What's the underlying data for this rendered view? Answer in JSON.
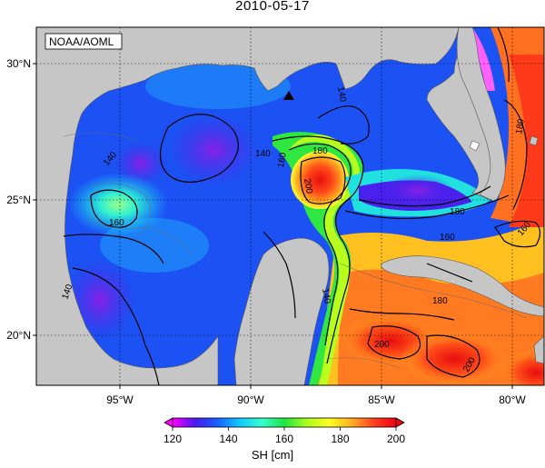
{
  "title": "2010-05-17",
  "credit": "NOAA/AOML",
  "lat_labels": [
    "30°N",
    "25°N",
    "20°N"
  ],
  "lon_labels": [
    "95°W",
    "90°W",
    "85°W",
    "80°W"
  ],
  "contour_labels": {
    "c1": "140",
    "c2": "140",
    "c3": "140",
    "c4": "160",
    "c5": "160",
    "c6": "180",
    "c7": "200",
    "c8": "160",
    "c9": "180",
    "c10": "160",
    "c11": "180",
    "c12": "200",
    "c13": "200",
    "c14": "140",
    "c15": "180",
    "c16": "140"
  },
  "colorbar": {
    "ticks": [
      "120",
      "140",
      "160",
      "180",
      "200"
    ],
    "unit": "SH [cm]",
    "stops": [
      "#ff00ff",
      "#4b17f0",
      "#1560ff",
      "#10c8ff",
      "#35ffd0",
      "#20e440",
      "#a8ff20",
      "#ffff20",
      "#ffb020",
      "#ff4020",
      "#ee0010"
    ]
  },
  "colors": {
    "land": "#c6c6c6",
    "low_anomaly": "#9a2ee6",
    "mid": "#1e7bff",
    "loop_current": "#ff3a1a"
  }
}
